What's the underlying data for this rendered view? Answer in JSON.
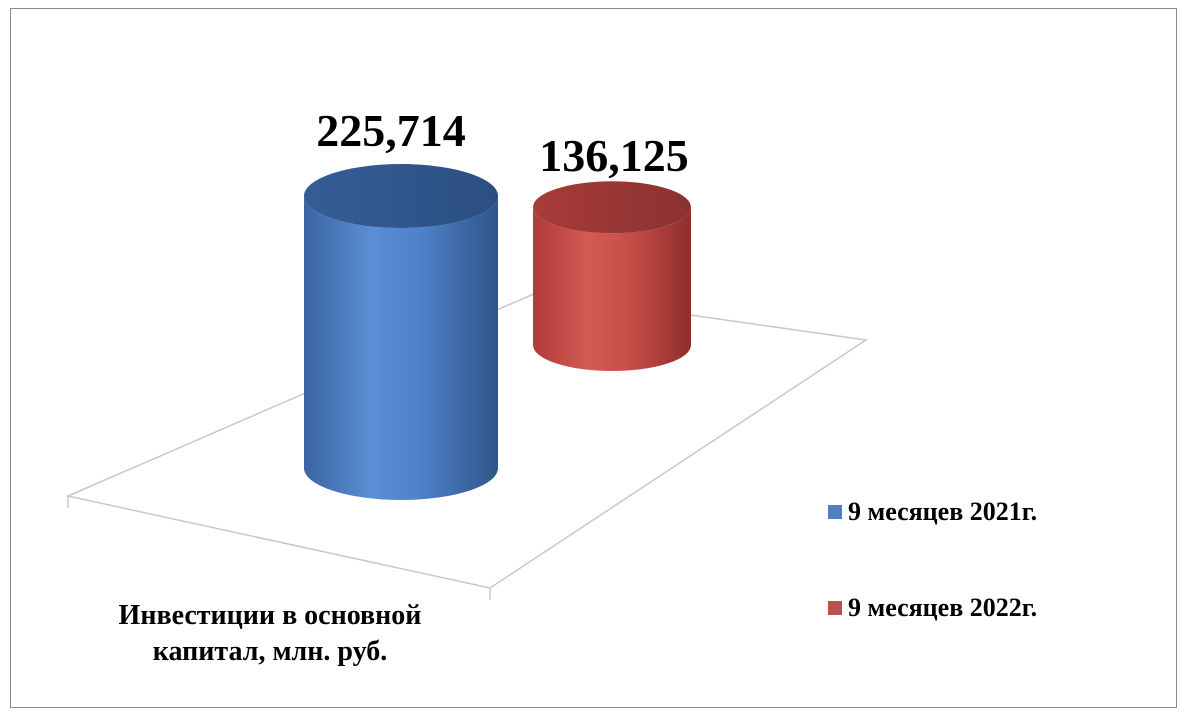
{
  "chart_data": {
    "type": "bar",
    "style": "3d-cylinder",
    "categories": [
      "Инвестиции в основной капитал, млн. руб."
    ],
    "series": [
      {
        "name": "9 месяцев 2021г.",
        "values": [
          225.714
        ],
        "value_label": "225,714",
        "color": "#4f81bd"
      },
      {
        "name": "9 месяцев 2022г.",
        "values": [
          136.125
        ],
        "value_label": "136,125",
        "color": "#c0504d"
      }
    ],
    "legend_position": "right",
    "grid": false
  }
}
